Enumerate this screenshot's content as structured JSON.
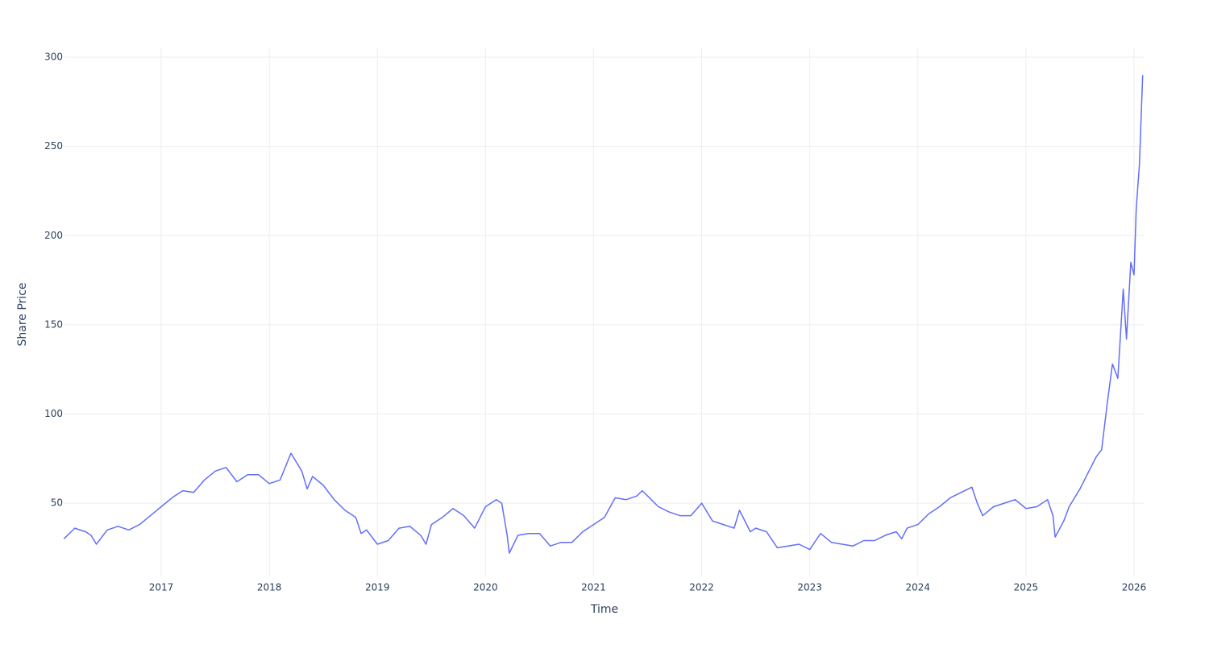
{
  "chart_data": {
    "type": "line",
    "x_label": "Time",
    "y_label": "Share Price",
    "x": [
      2016.1,
      2016.2,
      2016.3,
      2016.35,
      2016.4,
      2016.5,
      2016.6,
      2016.7,
      2016.8,
      2016.9,
      2017.0,
      2017.1,
      2017.2,
      2017.3,
      2017.4,
      2017.5,
      2017.6,
      2017.7,
      2017.8,
      2017.9,
      2018.0,
      2018.1,
      2018.2,
      2018.3,
      2018.35,
      2018.4,
      2018.5,
      2018.6,
      2018.7,
      2018.8,
      2018.85,
      2018.9,
      2019.0,
      2019.1,
      2019.2,
      2019.3,
      2019.4,
      2019.45,
      2019.5,
      2019.6,
      2019.7,
      2019.8,
      2019.9,
      2020.0,
      2020.1,
      2020.15,
      2020.2,
      2020.22,
      2020.3,
      2020.4,
      2020.5,
      2020.6,
      2020.7,
      2020.8,
      2020.9,
      2021.0,
      2021.1,
      2021.2,
      2021.3,
      2021.4,
      2021.45,
      2021.5,
      2021.6,
      2021.7,
      2021.8,
      2021.9,
      2022.0,
      2022.1,
      2022.2,
      2022.3,
      2022.35,
      2022.45,
      2022.5,
      2022.6,
      2022.7,
      2022.8,
      2022.9,
      2023.0,
      2023.1,
      2023.2,
      2023.3,
      2023.4,
      2023.5,
      2023.6,
      2023.7,
      2023.8,
      2023.85,
      2023.9,
      2024.0,
      2024.1,
      2024.2,
      2024.3,
      2024.4,
      2024.5,
      2024.55,
      2024.6,
      2024.7,
      2024.8,
      2024.9,
      2025.0,
      2025.1,
      2025.2,
      2025.25,
      2025.27,
      2025.35,
      2025.4,
      2025.5,
      2025.6,
      2025.65,
      2025.7,
      2025.75,
      2025.8,
      2025.85,
      2025.9,
      2025.93,
      2025.97,
      2026.0,
      2026.02,
      2026.05,
      2026.08
    ],
    "series": [
      {
        "name": "Share Price",
        "color": "#636efa",
        "values": [
          30,
          36,
          34,
          32,
          27,
          35,
          37,
          35,
          38,
          43,
          48,
          53,
          57,
          56,
          63,
          68,
          70,
          62,
          66,
          66,
          61,
          63,
          78,
          68,
          58,
          65,
          60,
          52,
          46,
          42,
          33,
          35,
          27,
          29,
          36,
          37,
          32,
          27,
          38,
          42,
          47,
          43,
          36,
          48,
          52,
          50,
          32,
          22,
          32,
          33,
          33,
          26,
          28,
          28,
          34,
          38,
          42,
          53,
          52,
          54,
          57,
          54,
          48,
          45,
          43,
          43,
          50,
          40,
          38,
          36,
          46,
          34,
          36,
          34,
          25,
          26,
          27,
          24,
          33,
          28,
          27,
          26,
          29,
          29,
          32,
          34,
          30,
          36,
          38,
          44,
          48,
          53,
          56,
          59,
          50,
          43,
          48,
          50,
          52,
          47,
          48,
          52,
          43,
          31,
          40,
          48,
          58,
          70,
          76,
          80,
          105,
          128,
          120,
          170,
          142,
          185,
          178,
          215,
          240,
          290
        ]
      }
    ],
    "xlim": [
      2016.105,
      2026.097
    ],
    "xticks": [
      2017,
      2018,
      2019,
      2020,
      2021,
      2022,
      2023,
      2024,
      2025,
      2026
    ],
    "ylim": [
      8.9,
      305
    ],
    "yticks": [
      50,
      100,
      150,
      200,
      250,
      300
    ],
    "grid": true
  }
}
